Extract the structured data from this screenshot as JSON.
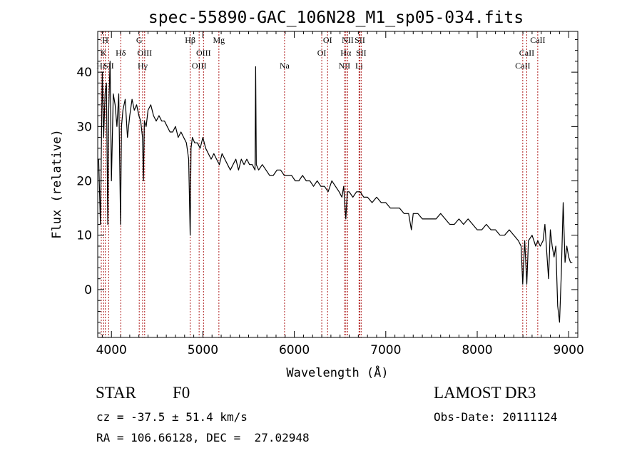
{
  "chart_data": {
    "type": "line",
    "title": "spec-55890-GAC_106N28_M1_sp05-034.fits",
    "xlabel": "Wavelength (Å)",
    "ylabel": "Flux (relative)",
    "xlim": [
      3850,
      9100
    ],
    "ylim": [
      -8.8,
      47.5
    ],
    "xticks": [
      4000,
      5000,
      6000,
      7000,
      8000,
      9000
    ],
    "yticks": [
      0,
      10,
      20,
      30,
      40
    ],
    "series": [
      {
        "name": "flux",
        "x": [
          3860,
          3880,
          3900,
          3915,
          3930,
          3945,
          3960,
          3970,
          3985,
          4000,
          4020,
          4040,
          4060,
          4080,
          4100,
          4110,
          4125,
          4150,
          4175,
          4200,
          4225,
          4250,
          4275,
          4300,
          4320,
          4340,
          4350,
          4360,
          4380,
          4400,
          4430,
          4460,
          4490,
          4520,
          4550,
          4580,
          4610,
          4640,
          4670,
          4700,
          4730,
          4760,
          4790,
          4820,
          4845,
          4861,
          4870,
          4885,
          4910,
          4940,
          4970,
          5000,
          5030,
          5060,
          5090,
          5120,
          5150,
          5180,
          5210,
          5240,
          5270,
          5300,
          5330,
          5360,
          5390,
          5420,
          5450,
          5480,
          5510,
          5540,
          5570,
          5577,
          5584,
          5610,
          5650,
          5690,
          5730,
          5770,
          5810,
          5850,
          5890,
          5930,
          5970,
          6010,
          6050,
          6090,
          6130,
          6170,
          6210,
          6250,
          6290,
          6330,
          6370,
          6410,
          6450,
          6490,
          6520,
          6540,
          6563,
          6580,
          6600,
          6640,
          6680,
          6720,
          6760,
          6800,
          6850,
          6900,
          6950,
          7000,
          7050,
          7100,
          7150,
          7200,
          7250,
          7280,
          7300,
          7350,
          7400,
          7450,
          7500,
          7550,
          7600,
          7650,
          7700,
          7750,
          7800,
          7850,
          7900,
          7950,
          8000,
          8050,
          8100,
          8150,
          8200,
          8250,
          8300,
          8350,
          8400,
          8450,
          8480,
          8498,
          8520,
          8542,
          8560,
          8600,
          8640,
          8662,
          8690,
          8720,
          8740,
          8760,
          8780,
          8800,
          8820,
          8840,
          8860,
          8880,
          8900,
          8920,
          8940,
          8960,
          8980,
          9000,
          9020,
          9040
        ],
        "y": [
          24,
          12,
          40,
          28,
          36,
          38,
          12,
          33,
          42,
          20,
          36,
          34,
          30,
          36,
          12,
          30,
          33,
          35,
          28,
          32,
          35,
          33,
          34,
          32,
          31,
          28,
          20,
          31,
          30,
          33,
          34,
          32,
          31,
          32,
          31,
          31,
          30,
          29,
          29,
          30,
          28,
          29,
          28,
          27,
          24,
          10,
          26,
          28,
          27,
          27,
          26,
          28,
          26,
          25,
          24,
          25,
          24,
          23,
          25,
          24,
          23,
          22,
          23,
          24,
          22,
          24,
          23,
          24,
          23,
          23,
          22,
          41,
          23,
          22,
          23,
          22,
          21,
          21,
          22,
          22,
          21,
          21,
          21,
          20,
          20,
          21,
          20,
          20,
          19,
          20,
          19,
          19,
          18,
          20,
          19,
          18,
          17,
          19,
          13,
          18,
          18,
          17,
          18,
          18,
          17,
          17,
          16,
          17,
          16,
          16,
          15,
          15,
          15,
          14,
          14,
          11,
          14,
          14,
          13,
          13,
          13,
          13,
          14,
          13,
          12,
          12,
          13,
          12,
          13,
          12,
          11,
          11,
          12,
          11,
          11,
          10,
          10,
          11,
          10,
          9,
          8,
          1,
          9,
          1,
          9,
          10,
          8,
          9,
          8,
          9,
          12,
          7,
          2,
          11,
          8,
          6,
          8,
          -3,
          -6,
          3,
          16,
          5,
          8,
          6,
          5,
          5
        ]
      }
    ],
    "lines": [
      {
        "wl": 3889,
        "label": "Hε",
        "row": 2
      },
      {
        "wl": 3915,
        "label": "K",
        "row": 1
      },
      {
        "wl": 3933,
        "label": "H",
        "row": 0
      },
      {
        "wl": 3970,
        "label": "SII",
        "row": 2
      },
      {
        "wl": 4102,
        "label": "Hδ",
        "row": 1
      },
      {
        "wl": 4304,
        "label": "G",
        "row": 0
      },
      {
        "wl": 4341,
        "label": "Hγ",
        "row": 2
      },
      {
        "wl": 4363,
        "label": "OIII",
        "row": 1
      },
      {
        "wl": 4861,
        "label": "Hβ",
        "row": 0
      },
      {
        "wl": 4959,
        "label": "OIII",
        "row": 2
      },
      {
        "wl": 5007,
        "label": "OIII",
        "row": 1
      },
      {
        "wl": 5175,
        "label": "Mg",
        "row": 0
      },
      {
        "wl": 5893,
        "label": "Na",
        "row": 2
      },
      {
        "wl": 6300,
        "label": "OI",
        "row": 1
      },
      {
        "wl": 6364,
        "label": "OI",
        "row": 0
      },
      {
        "wl": 6548,
        "label": "NII",
        "row": 2
      },
      {
        "wl": 6563,
        "label": "Hα",
        "row": 1
      },
      {
        "wl": 6584,
        "label": "NII",
        "row": 0
      },
      {
        "wl": 6708,
        "label": "Li",
        "row": 2
      },
      {
        "wl": 6717,
        "label": "SII",
        "row": 0
      },
      {
        "wl": 6731,
        "label": "SII",
        "row": 1
      },
      {
        "wl": 8498,
        "label": "CaII",
        "row": 2
      },
      {
        "wl": 8542,
        "label": "CaII",
        "row": 1
      },
      {
        "wl": 8662,
        "label": "CaII",
        "row": 0
      }
    ],
    "colors": {
      "trace": "#000000",
      "axis": "#000000",
      "line_marker": "#b02020"
    }
  },
  "info": {
    "class": "STAR",
    "subclass": "F0",
    "survey": "LAMOST DR3",
    "cz": "cz = -37.5 ± 51.4 km/s",
    "obsdate": "Obs-Date: 20111124",
    "coords": "RA = 106.66128, DEC =  27.02948"
  }
}
